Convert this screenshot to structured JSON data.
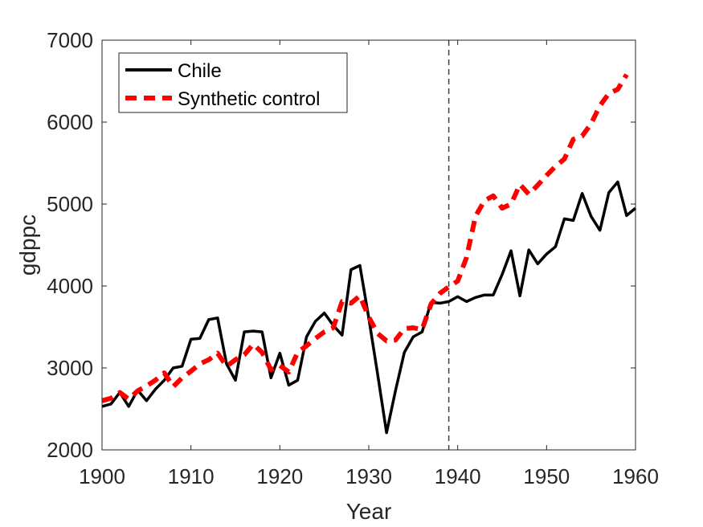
{
  "chart_data": {
    "type": "line",
    "title": "",
    "xlabel": "Year",
    "ylabel": "gdppc",
    "xlim": [
      1900,
      1960
    ],
    "ylim": [
      2000,
      7000
    ],
    "xticks": [
      1900,
      1910,
      1920,
      1930,
      1940,
      1950,
      1960
    ],
    "yticks": [
      2000,
      3000,
      4000,
      5000,
      6000,
      7000
    ],
    "grid": false,
    "legend_position": "top-left",
    "vertical_reference_line": 1939,
    "series": [
      {
        "name": "Chile",
        "color": "#000000",
        "style": "solid",
        "x": [
          1900,
          1901,
          1902,
          1903,
          1904,
          1905,
          1906,
          1907,
          1908,
          1909,
          1910,
          1911,
          1912,
          1913,
          1914,
          1915,
          1916,
          1917,
          1918,
          1919,
          1920,
          1921,
          1922,
          1923,
          1924,
          1925,
          1926,
          1927,
          1928,
          1929,
          1930,
          1931,
          1932,
          1933,
          1934,
          1935,
          1936,
          1937,
          1938,
          1939,
          1940,
          1941,
          1942,
          1943,
          1944,
          1945,
          1946,
          1947,
          1948,
          1949,
          1950,
          1951,
          1952,
          1953,
          1954,
          1955,
          1956,
          1957,
          1958,
          1959,
          1960
        ],
        "y": [
          2530,
          2560,
          2700,
          2530,
          2730,
          2600,
          2740,
          2850,
          3000,
          3020,
          3350,
          3360,
          3590,
          3610,
          3050,
          2850,
          3440,
          3450,
          3440,
          2880,
          3180,
          2790,
          2850,
          3380,
          3570,
          3670,
          3520,
          3400,
          4200,
          4250,
          3610,
          2920,
          2210,
          2720,
          3190,
          3380,
          3440,
          3800,
          3790,
          3810,
          3870,
          3810,
          3860,
          3890,
          3890,
          4140,
          4430,
          3880,
          4440,
          4270,
          4390,
          4480,
          4820,
          4800,
          5130,
          4850,
          4680,
          5140,
          5270,
          4860,
          4950
        ]
      },
      {
        "name": "Synthetic control",
        "color": "#ff0000",
        "style": "dashed",
        "x": [
          1900,
          1901,
          1902,
          1903,
          1904,
          1905,
          1906,
          1907,
          1908,
          1909,
          1910,
          1911,
          1912,
          1913,
          1914,
          1915,
          1916,
          1917,
          1918,
          1919,
          1920,
          1921,
          1922,
          1923,
          1924,
          1925,
          1926,
          1927,
          1928,
          1929,
          1930,
          1931,
          1932,
          1933,
          1934,
          1935,
          1936,
          1937,
          1938,
          1939,
          1940,
          1941,
          1942,
          1943,
          1944,
          1945,
          1946,
          1947,
          1948,
          1949,
          1950,
          1951,
          1952,
          1953,
          1954,
          1955,
          1956,
          1957,
          1958,
          1959
        ],
        "y": [
          2600,
          2630,
          2700,
          2620,
          2720,
          2780,
          2850,
          2940,
          2770,
          2880,
          2960,
          3050,
          3100,
          3180,
          3020,
          3100,
          3160,
          3290,
          3190,
          2980,
          3030,
          2950,
          3190,
          3270,
          3360,
          3440,
          3490,
          3810,
          3790,
          3880,
          3620,
          3420,
          3330,
          3340,
          3480,
          3490,
          3470,
          3780,
          3910,
          3990,
          4060,
          4350,
          4850,
          5040,
          5100,
          4950,
          5000,
          5240,
          5120,
          5230,
          5350,
          5460,
          5550,
          5790,
          5830,
          5980,
          6200,
          6350,
          6400,
          6580
        ]
      }
    ]
  }
}
